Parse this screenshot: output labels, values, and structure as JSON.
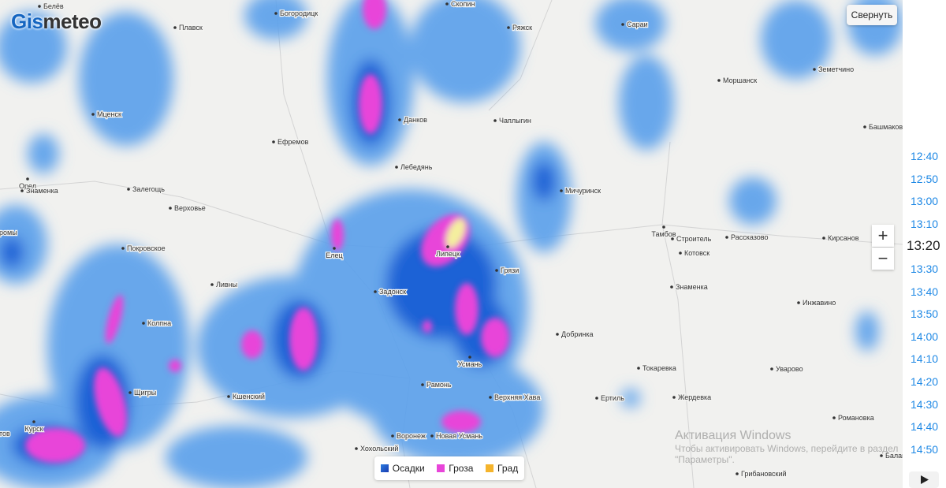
{
  "logo": [
    "Gis",
    "meteo"
  ],
  "collapse_button": "Свернуть",
  "zoom": [
    "+",
    "−"
  ],
  "times": [
    "12:40",
    "12:50",
    "13:00",
    "13:10",
    "13:20",
    "13:30",
    "13:40",
    "13:50",
    "14:00",
    "14:10",
    "14:20",
    "14:30",
    "14:40",
    "14:50"
  ],
  "current_time_index": 4,
  "legend": [
    "Осадки",
    "Гроза",
    "Град"
  ],
  "cities": [
    "Белёв",
    "Плавск",
    "Богородицк",
    "Скопин",
    "Ряжск",
    "Сараи",
    "Моршанск",
    "Земетчино",
    "Мценск",
    "Данков",
    "Чаплыгин",
    "Башмаково",
    "Ефремов",
    "Орел",
    "Лебедянь",
    "Знаменка",
    "Залегощь",
    "Мичуринск",
    "Верховье",
    "Тамбов",
    "Строитель",
    "Рассказово",
    "Кирсанов",
    "ромы",
    "Покровское",
    "Елец",
    "Липецк",
    "Котовск",
    "Грязи",
    "Ливны",
    "Знаменка",
    "Задонск",
    "Инжавино",
    "Колпна",
    "Добринка",
    "Усмань",
    "Токаревка",
    "Уварово",
    "Щигры",
    "Кшенский",
    "Рамонь",
    "Верхняя Хава",
    "Ертиль",
    "Жердевка",
    "Романовка",
    "Курск",
    "тов",
    "Воронеж",
    "Новая Усмань",
    "Хохольский",
    "Балаш",
    "Грибановский"
  ],
  "watermark": {
    "title": "Активация Windows",
    "lines": [
      "Чтобы активировать Windows, перейдите в раздел",
      "\"Параметры\"."
    ]
  }
}
